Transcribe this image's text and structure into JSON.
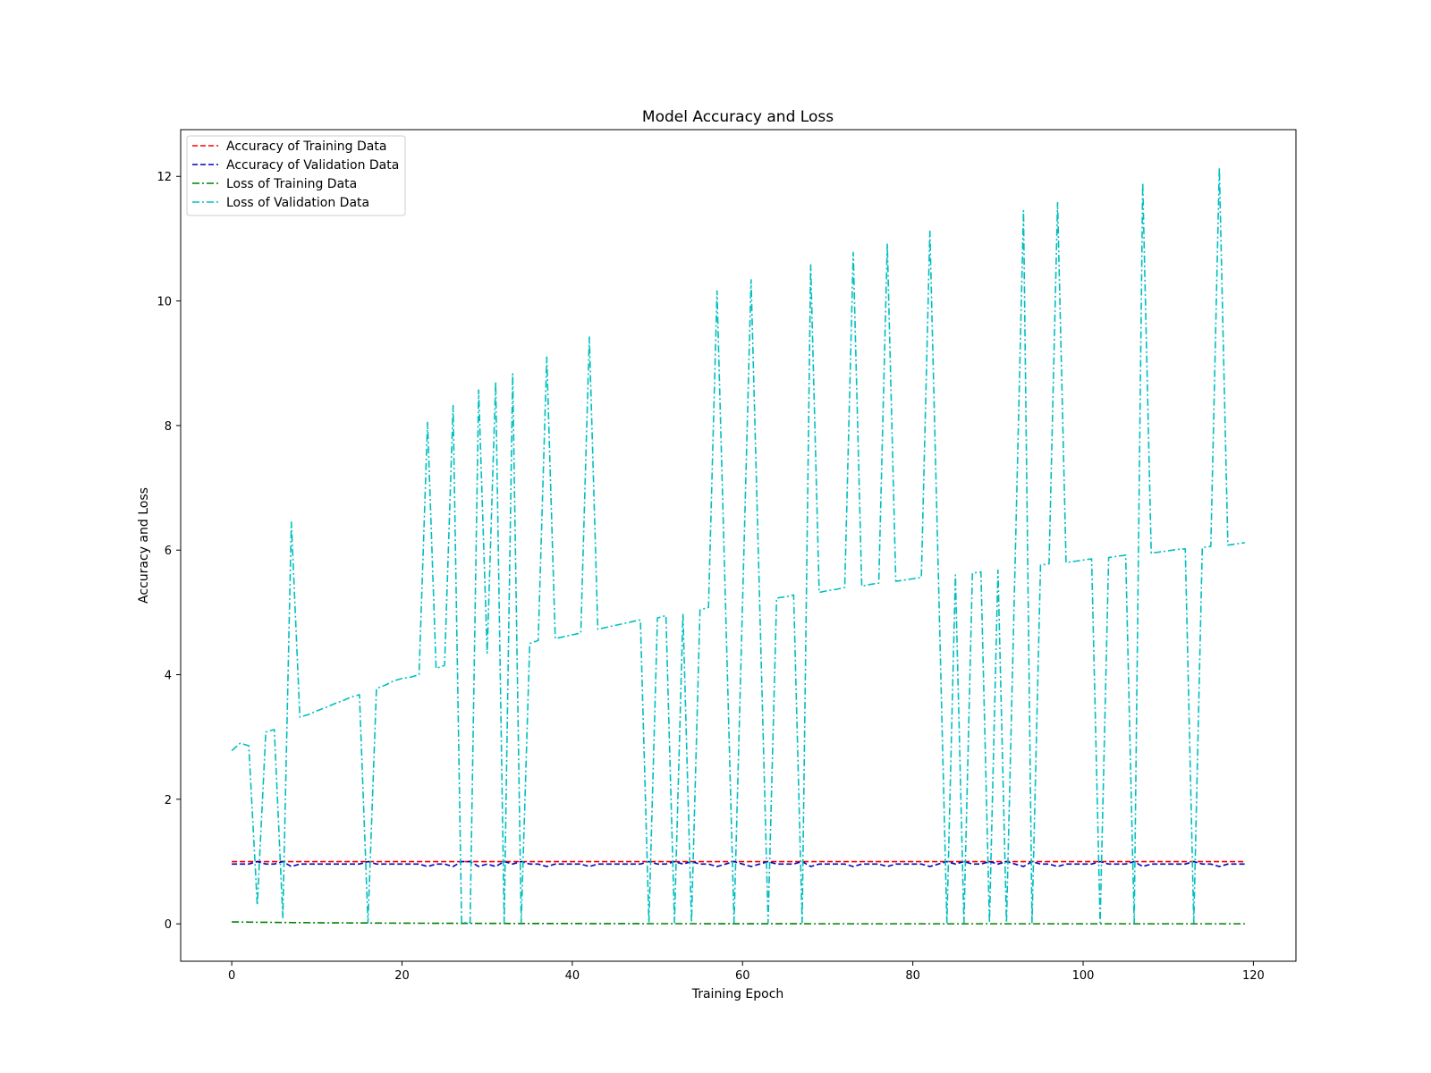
{
  "chart_data": {
    "type": "line",
    "title": "Model Accuracy and Loss",
    "xlabel": "Training Epoch",
    "ylabel": "Accuracy and Loss",
    "xlim": [
      -6,
      125
    ],
    "ylim": [
      -0.6,
      12.75
    ],
    "xticks": [
      0,
      20,
      40,
      60,
      80,
      100,
      120
    ],
    "yticks": [
      0,
      2,
      4,
      6,
      8,
      10,
      12
    ],
    "grid": false,
    "legend_position": "top-left",
    "x": [
      0,
      1,
      2,
      3,
      4,
      5,
      6,
      7,
      8,
      9,
      10,
      11,
      12,
      13,
      14,
      15,
      16,
      17,
      18,
      19,
      20,
      21,
      22,
      23,
      24,
      25,
      26,
      27,
      28,
      29,
      30,
      31,
      32,
      33,
      34,
      35,
      36,
      37,
      38,
      39,
      40,
      41,
      42,
      43,
      44,
      45,
      46,
      47,
      48,
      49,
      50,
      51,
      52,
      53,
      54,
      55,
      56,
      57,
      58,
      59,
      60,
      61,
      62,
      63,
      64,
      65,
      66,
      67,
      68,
      69,
      70,
      71,
      72,
      73,
      74,
      75,
      76,
      77,
      78,
      79,
      80,
      81,
      82,
      83,
      84,
      85,
      86,
      87,
      88,
      89,
      90,
      91,
      92,
      93,
      94,
      95,
      96,
      97,
      98,
      99,
      100,
      101,
      102,
      103,
      104,
      105,
      106,
      107,
      108,
      109,
      110,
      111,
      112,
      113,
      114,
      115,
      116,
      117,
      118,
      119
    ],
    "series": [
      {
        "name": "Accuracy of Training Data",
        "color": "#ff0000",
        "dash": "dashed",
        "values": [
          1,
          1,
          1,
          1,
          1,
          1,
          1,
          1,
          1,
          1,
          1,
          1,
          1,
          1,
          1,
          1,
          1,
          1,
          1,
          1,
          1,
          1,
          1,
          1,
          1,
          1,
          1,
          1,
          1,
          1,
          1,
          1,
          1,
          1,
          1,
          1,
          1,
          1,
          1,
          1,
          1,
          1,
          1,
          1,
          1,
          1,
          1,
          1,
          1,
          1,
          1,
          1,
          1,
          1,
          1,
          1,
          1,
          1,
          1,
          1,
          1,
          1,
          1,
          1,
          1,
          1,
          1,
          1,
          1,
          1,
          1,
          1,
          1,
          1,
          1,
          1,
          1,
          1,
          1,
          1,
          1,
          1,
          1,
          1,
          1,
          1,
          1,
          1,
          1,
          1,
          1,
          1,
          1,
          1,
          1,
          1,
          1,
          1,
          1,
          1,
          1,
          1,
          1,
          1,
          1,
          1,
          1,
          1,
          1,
          1,
          1,
          1,
          1,
          1,
          1,
          1,
          1,
          1,
          1,
          1
        ]
      },
      {
        "name": "Accuracy of Validation Data",
        "color": "#0000bf",
        "dash": "dashed",
        "values": [
          0.96,
          0.96,
          0.96,
          1.0,
          0.96,
          0.96,
          1.0,
          0.92,
          0.96,
          0.96,
          0.96,
          0.96,
          0.96,
          0.96,
          0.96,
          0.96,
          1.0,
          0.96,
          0.96,
          0.96,
          0.96,
          0.96,
          0.96,
          0.92,
          0.96,
          0.96,
          0.92,
          1.0,
          1.0,
          0.92,
          0.96,
          0.92,
          1.0,
          0.96,
          1.0,
          0.96,
          0.96,
          0.92,
          0.96,
          0.96,
          0.96,
          0.96,
          0.92,
          0.96,
          0.96,
          0.96,
          0.96,
          0.96,
          0.96,
          1.0,
          0.96,
          0.96,
          1.0,
          0.96,
          1.0,
          0.96,
          0.96,
          0.92,
          0.96,
          1.0,
          0.96,
          0.92,
          0.96,
          1.0,
          0.96,
          0.96,
          0.96,
          1.0,
          0.92,
          0.96,
          0.96,
          0.96,
          0.96,
          0.92,
          0.96,
          0.96,
          0.96,
          0.92,
          0.96,
          0.96,
          0.96,
          0.96,
          0.92,
          0.96,
          1.0,
          0.96,
          1.0,
          0.96,
          0.96,
          1.0,
          0.96,
          1.0,
          0.96,
          0.92,
          1.0,
          0.96,
          0.96,
          0.92,
          0.96,
          0.96,
          0.96,
          0.96,
          1.0,
          0.96,
          0.96,
          0.96,
          1.0,
          0.92,
          0.96,
          0.96,
          0.96,
          0.96,
          0.96,
          1.0,
          0.96,
          0.96,
          0.92,
          0.96,
          0.96,
          0.96
        ]
      },
      {
        "name": "Loss of Training Data",
        "color": "#008000",
        "dash": "dashdot",
        "values": [
          0.03,
          0.03,
          0.028,
          0.026,
          0.025,
          0.024,
          0.022,
          0.021,
          0.02,
          0.019,
          0.018,
          0.017,
          0.016,
          0.016,
          0.015,
          0.014,
          0.014,
          0.013,
          0.012,
          0.012,
          0.011,
          0.011,
          0.01,
          0.01,
          0.009,
          0.009,
          0.009,
          0.008,
          0.008,
          0.008,
          0.007,
          0.007,
          0.007,
          0.006,
          0.006,
          0.006,
          0.006,
          0.005,
          0.005,
          0.005,
          0.005,
          0.005,
          0.004,
          0.004,
          0.004,
          0.004,
          0.004,
          0.004,
          0.003,
          0.003,
          0.003,
          0.003,
          0.003,
          0.003,
          0.003,
          0.003,
          0.002,
          0.002,
          0.002,
          0.002,
          0.002,
          0.002,
          0.002,
          0.002,
          0.002,
          0.002,
          0.002,
          0.002,
          0.001,
          0.001,
          0.001,
          0.001,
          0.001,
          0.001,
          0.001,
          0.001,
          0.001,
          0.001,
          0.001,
          0.001,
          0.001,
          0.001,
          0.001,
          0.001,
          0.001,
          0.001,
          0.001,
          0.001,
          0.001,
          0.001,
          0.001,
          0.001,
          0.001,
          0.001,
          0.001,
          0.001,
          0.001,
          0.001,
          0.001,
          0.001,
          0.001,
          0.001,
          0.001,
          0.001,
          0.001,
          0.001,
          0.001,
          0.001,
          0.001,
          0.001,
          0.001,
          0.001,
          0.001,
          0.001,
          0.001,
          0.001,
          0.001,
          0.001,
          0.001,
          0.001
        ]
      },
      {
        "name": "Loss of Validation Data",
        "color": "#00bfbf",
        "dash": "dashdot",
        "values": [
          2.78,
          2.9,
          2.86,
          0.3,
          3.08,
          3.12,
          0.1,
          6.45,
          3.32,
          3.36,
          3.42,
          3.47,
          3.53,
          3.58,
          3.64,
          3.68,
          0.02,
          3.78,
          3.83,
          3.9,
          3.94,
          3.96,
          4.0,
          8.05,
          4.1,
          4.15,
          8.32,
          0.02,
          0.02,
          8.57,
          4.35,
          8.7,
          0.02,
          8.83,
          0.02,
          4.5,
          4.55,
          9.1,
          4.58,
          4.61,
          4.64,
          4.67,
          9.42,
          4.73,
          4.76,
          4.79,
          4.82,
          4.85,
          4.88,
          0.02,
          4.91,
          4.95,
          0.02,
          4.98,
          0.02,
          5.04,
          5.08,
          10.16,
          5.12,
          0.02,
          5.16,
          10.34,
          5.2,
          0.02,
          5.23,
          5.25,
          5.28,
          0.02,
          10.58,
          5.32,
          5.35,
          5.37,
          5.4,
          10.78,
          5.42,
          5.45,
          5.47,
          10.92,
          5.5,
          5.52,
          5.54,
          5.56,
          11.12,
          5.59,
          0.02,
          5.6,
          0.02,
          5.63,
          5.65,
          0.02,
          5.68,
          0.02,
          5.72,
          11.45,
          0.02,
          5.76,
          5.78,
          11.58,
          5.8,
          5.82,
          5.84,
          5.86,
          0.02,
          5.88,
          5.9,
          5.92,
          0.02,
          11.9,
          5.95,
          5.97,
          5.99,
          6.01,
          6.02,
          0.02,
          6.04,
          6.06,
          12.14,
          6.08,
          6.1,
          6.12
        ]
      }
    ]
  }
}
